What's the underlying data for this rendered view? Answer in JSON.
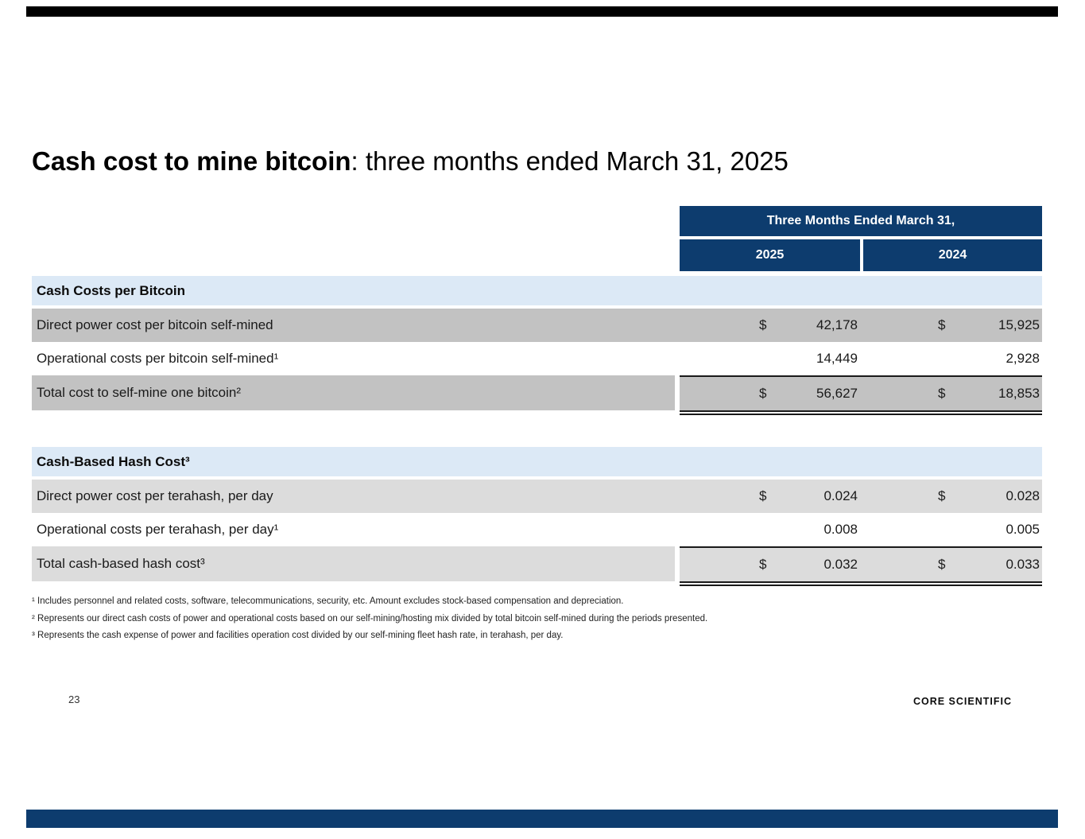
{
  "slide": {
    "title_bold": "Cash cost to mine bitcoin",
    "title_rest": ": three months ended March 31, 2025",
    "page_number": "23",
    "logo_text": "CORE SCIENTIFIC"
  },
  "table": {
    "header": {
      "span_label": "Three Months Ended March 31,",
      "col_left": "2025",
      "col_right": "2024"
    },
    "sections": [
      {
        "heading": "Cash Costs per Bitcoin",
        "rows": [
          {
            "label": "Direct power cost per bitcoin self-mined",
            "d1": "$",
            "v1": "42,178",
            "d2": "$",
            "v2": "15,925",
            "shade": "dark",
            "total": false
          },
          {
            "label": "Operational costs per bitcoin self-mined¹",
            "d1": "",
            "v1": "14,449",
            "d2": "",
            "v2": "2,928",
            "shade": "none",
            "total": false
          },
          {
            "label": "Total cost to self-mine one bitcoin²",
            "d1": "$",
            "v1": "56,627",
            "d2": "$",
            "v2": "18,853",
            "shade": "dark",
            "total": true
          }
        ]
      },
      {
        "heading": "Cash-Based Hash Cost³",
        "rows": [
          {
            "label": "Direct power cost per terahash, per day",
            "d1": "$",
            "v1": "0.024",
            "d2": "$",
            "v2": "0.028",
            "shade": "light",
            "total": false
          },
          {
            "label": "Operational costs per terahash, per day¹",
            "d1": "",
            "v1": "0.008",
            "d2": "",
            "v2": "0.005",
            "shade": "none",
            "total": false
          },
          {
            "label": "Total cash-based hash cost³",
            "d1": "$",
            "v1": "0.032",
            "d2": "$",
            "v2": "0.033",
            "shade": "light",
            "total": true
          }
        ]
      }
    ]
  },
  "footnotes": [
    "¹ Includes personnel and related costs, software, telecommunications, security, etc. Amount excludes stock-based compensation and depreciation.",
    "² Represents our direct cash costs of power and operational costs based on our self-mining/hosting mix divided by total bitcoin self-mined during the periods presented.",
    "³ Represents the cash expense of power and facilities operation cost divided by our self-mining fleet hash rate, in terahash, per day."
  ],
  "colors": {
    "header_navy": "#0d3c6e",
    "section_band_blue": "#dce9f6",
    "row_gray_dark": "#c2c2c2",
    "row_gray_light": "#dcdcdc",
    "top_bar_black": "#000000",
    "rule_black": "#1a1a1a"
  }
}
